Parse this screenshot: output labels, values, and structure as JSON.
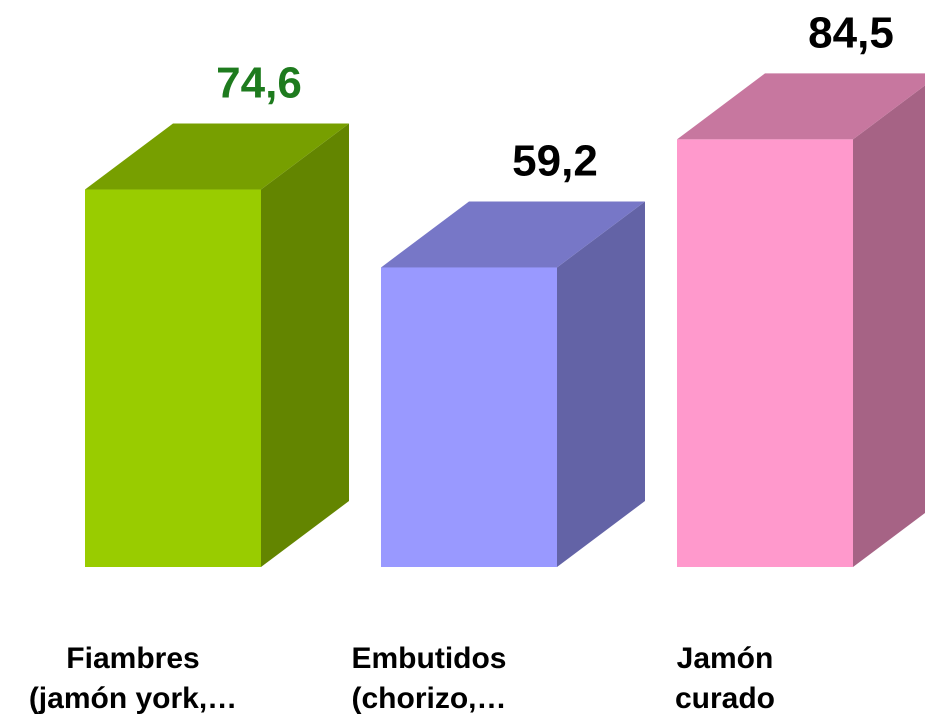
{
  "chart_data": {
    "type": "bar3d",
    "categories": [
      "Fiambres\n(jamón york,…",
      "Embutidos\n(chorizo,…",
      "Jamón\ncurado"
    ],
    "values": [
      74.6,
      59.2,
      84.5
    ],
    "value_labels": [
      "74,6",
      "59,2",
      "84,5"
    ],
    "colors": [
      "#99cc00",
      "#9999ff",
      "#ff99cc"
    ],
    "label_colors": [
      "#1e7b1e",
      "#000000",
      "#000000"
    ],
    "ylim": [
      0,
      100
    ]
  }
}
